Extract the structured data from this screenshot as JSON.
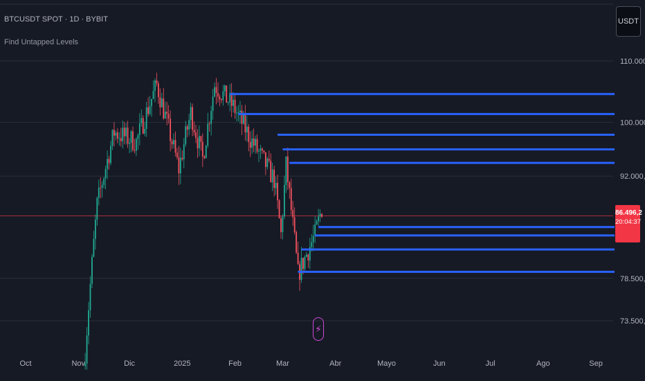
{
  "header": {
    "symbol": "BTCUSDT SPOT · 1D · BYBIT",
    "indicator": "Find Untapped Levels"
  },
  "currency_button": "USDT",
  "last_price": {
    "price": "86.496,2",
    "countdown": "20:04:37",
    "value": 86496.2,
    "color": "#f23645"
  },
  "colors": {
    "up": "#22ab94",
    "down": "#f7525f",
    "level": "#2962ff",
    "grid": "#2a2e39",
    "price_line": "#f23645",
    "flash": "#d04ad8"
  },
  "flash_icon": "lightning-icon",
  "chart_data": {
    "type": "candlestick",
    "x_ticks": [
      "Oct",
      "Nov",
      "Dic",
      "2025",
      "Feb",
      "Mar",
      "Abr",
      "Mayo",
      "Jun",
      "Jul",
      "Ago",
      "Sep"
    ],
    "y_ticks": [
      {
        "value": 110000,
        "label": "110.000,0"
      },
      {
        "value": 100000,
        "label": "100.000,0"
      },
      {
        "value": 92000,
        "label": "92.000,0"
      },
      {
        "value": 78500,
        "label": "78.500,0"
      },
      {
        "value": 73500,
        "label": "73.500,0"
      }
    ],
    "scale": "log",
    "ylim": [
      67000,
      118000
    ],
    "grid": true,
    "last_price": 86496.2,
    "untapped_levels": [
      {
        "price": 104500,
        "from": "2025-01-29",
        "to": "2025-09-30"
      },
      {
        "price": 101300,
        "from": "2025-02-03",
        "to": "2025-09-30"
      },
      {
        "price": 98100,
        "from": "2025-02-26",
        "to": "2025-09-30"
      },
      {
        "price": 95900,
        "from": "2025-03-01",
        "to": "2025-09-30"
      },
      {
        "price": 93900,
        "from": "2025-03-05",
        "to": "2025-09-30"
      },
      {
        "price": 85000,
        "from": "2025-03-22",
        "to": "2025-09-30"
      },
      {
        "price": 83900,
        "from": "2025-03-20",
        "to": "2025-09-30"
      },
      {
        "price": 82100,
        "from": "2025-03-12",
        "to": "2025-09-30"
      },
      {
        "price": 79300,
        "from": "2025-03-10",
        "to": "2025-09-30"
      }
    ],
    "key_points": [
      {
        "date": "2024-11-05",
        "close": 70000
      },
      {
        "date": "2024-11-12",
        "close": 88000
      },
      {
        "date": "2024-11-22",
        "close": 98500
      },
      {
        "date": "2024-12-05",
        "close": 97000
      },
      {
        "date": "2024-12-17",
        "close": 106000
      },
      {
        "date": "2024-12-30",
        "close": 93000
      },
      {
        "date": "2025-01-06",
        "close": 101500
      },
      {
        "date": "2025-01-13",
        "close": 94500
      },
      {
        "date": "2025-01-20",
        "close": 106000
      },
      {
        "date": "2025-01-31",
        "close": 102500
      },
      {
        "date": "2025-02-10",
        "close": 97500
      },
      {
        "date": "2025-02-24",
        "close": 91500
      },
      {
        "date": "2025-02-28",
        "close": 84000
      },
      {
        "date": "2025-03-03",
        "close": 93500
      },
      {
        "date": "2025-03-10",
        "close": 79000
      },
      {
        "date": "2025-03-20",
        "close": 84000
      },
      {
        "date": "2025-03-24",
        "close": 87500
      }
    ]
  }
}
